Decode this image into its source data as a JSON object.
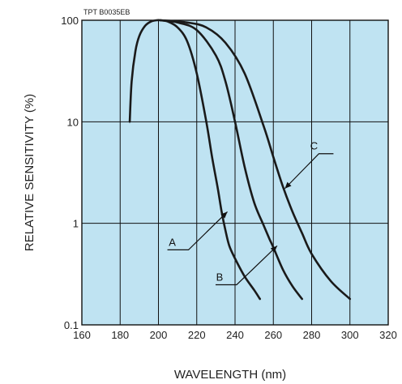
{
  "chart_data": {
    "type": "line",
    "code": "TPT B0035EB",
    "xlabel": "WAVELENGTH (nm)",
    "ylabel": "RELATIVE SENSITIVITY (%)",
    "xlim": [
      160,
      320
    ],
    "ylim": [
      0.1,
      100
    ],
    "yscale": "log",
    "grid": true,
    "background_color": "#bfe3f2",
    "x_ticks": [
      160,
      180,
      200,
      220,
      240,
      260,
      280,
      300,
      320
    ],
    "y_ticks": [
      0.1,
      1,
      10,
      100
    ],
    "x_tick_labels": [
      "160",
      "180",
      "200",
      "220",
      "240",
      "260",
      "280",
      "300",
      "320"
    ],
    "y_tick_labels": [
      "0.1",
      "1",
      "10",
      "100"
    ],
    "series": [
      {
        "name": "A",
        "x": [
          185,
          186,
          188,
          190,
          193,
          196,
          199,
          201,
          205,
          210,
          215,
          220,
          225,
          228,
          231,
          233,
          235,
          237,
          240,
          245,
          250,
          253
        ],
        "y": [
          10,
          25,
          50,
          70,
          88,
          97,
          100,
          100,
          97,
          85,
          62,
          30,
          10,
          4.5,
          2.2,
          1.3,
          0.85,
          0.6,
          0.45,
          0.3,
          0.22,
          0.18
        ]
      },
      {
        "name": "B",
        "x": [
          201,
          210,
          220,
          230,
          235,
          240,
          245,
          250,
          255,
          258,
          260,
          265,
          270,
          275
        ],
        "y": [
          100,
          95,
          80,
          45,
          25,
          10,
          3.6,
          1.6,
          0.95,
          0.7,
          0.58,
          0.35,
          0.24,
          0.18
        ]
      },
      {
        "name": "C",
        "x": [
          201,
          215,
          225,
          235,
          245,
          255,
          260,
          265,
          270,
          275,
          280,
          290,
          300
        ],
        "y": [
          100,
          95,
          85,
          60,
          30,
          9,
          4.5,
          2.3,
          1.3,
          0.8,
          0.5,
          0.27,
          0.18
        ]
      }
    ],
    "annotations": [
      {
        "text": "A",
        "series": "A",
        "x": 236,
        "y": 1.3
      },
      {
        "text": "B",
        "series": "B",
        "x": 262,
        "y": 0.6
      },
      {
        "text": "C",
        "series": "C",
        "x": 266,
        "y": 2.2
      }
    ]
  }
}
